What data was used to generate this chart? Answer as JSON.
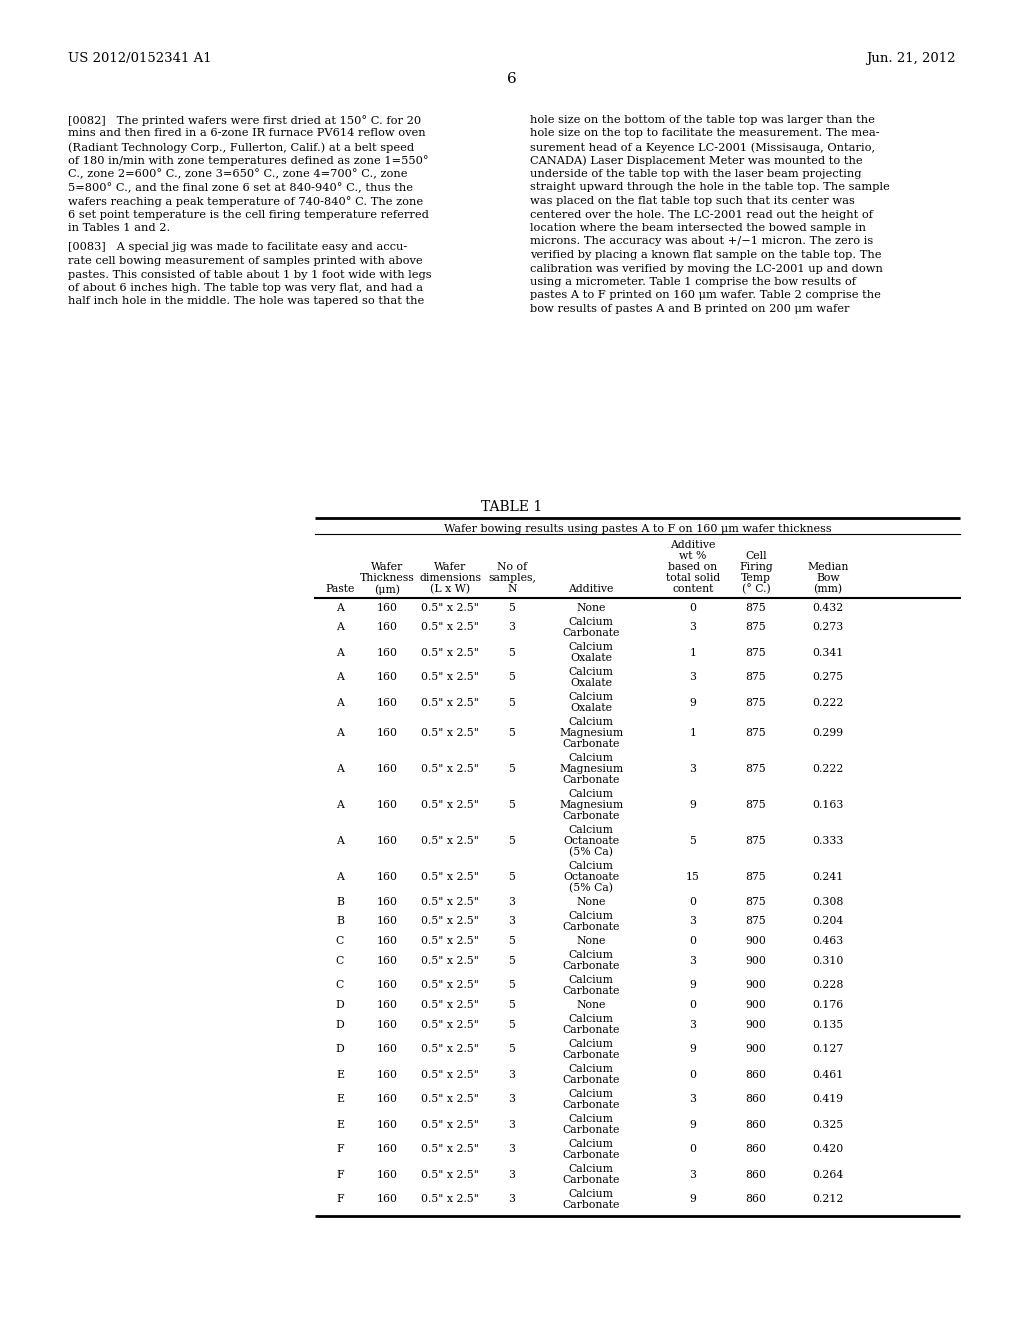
{
  "header_left": "US 2012/0152341 A1",
  "header_right": "Jun. 21, 2012",
  "page_number": "6",
  "para_0082_left": "[0082]   The printed wafers were first dried at 150° C. for 20\nmins and then fired in a 6-zone IR furnace PV614 reflow oven\n(Radiant Technology Corp., Fullerton, Calif.) at a belt speed\nof 180 in/min with zone temperatures defined as zone 1=550°\nC., zone 2=600° C., zone 3=650° C., zone 4=700° C., zone\n5=800° C., and the final zone 6 set at 840-940° C., thus the\nwafers reaching a peak temperature of 740-840° C. The zone\n6 set point temperature is the cell firing temperature referred\nin Tables 1 and 2.",
  "para_0083_left": "[0083]   A special jig was made to facilitate easy and accu-\nrate cell bowing measurement of samples printed with above\npastes. This consisted of table about 1 by 1 foot wide with legs\nof about 6 inches high. The table top was very flat, and had a\nhalf inch hole in the middle. The hole was tapered so that the",
  "para_right": "hole size on the bottom of the table top was larger than the\nhole size on the top to facilitate the measurement. The mea-\nsurement head of a Keyence LC-2001 (Missisauga, Ontario,\nCANADA) Laser Displacement Meter was mounted to the\nunderside of the table top with the laser beam projecting\nstraight upward through the hole in the table top. The sample\nwas placed on the flat table top such that its center was\ncentered over the hole. The LC-2001 read out the height of\nlocation where the beam intersected the bowed sample in\nmicrons. The accuracy was about +/−1 micron. The zero is\nverified by placing a known flat sample on the table top. The\ncalibration was verified by moving the LC-2001 up and down\nusing a micrometer. Table 1 comprise the bow results of\npastes A to F printed on 160 μm wafer. Table 2 comprise the\nbow results of pastes A and B printed on 200 μm wafer",
  "table_title": "TABLE 1",
  "table_subtitle": "Wafer bowing results using pastes A to F on 160 μm wafer thickness",
  "col_headers_line1": [
    "",
    "",
    "",
    "",
    "",
    "Additive",
    "",
    ""
  ],
  "col_headers_line2": [
    "",
    "",
    "",
    "",
    "",
    "wt %",
    "Cell",
    ""
  ],
  "col_headers_line3": [
    "",
    "Wafer",
    "Wafer",
    "No of",
    "",
    "based on",
    "Firing",
    "Median"
  ],
  "col_headers_line4": [
    "",
    "Thickness",
    "dimensions",
    "samples,",
    "",
    "total solid",
    "Temp",
    "Bow"
  ],
  "col_headers_line5": [
    "Paste",
    "(μm)",
    "(L x W)",
    "N",
    "Additive",
    "content",
    "(° C.)",
    "(mm)"
  ],
  "rows": [
    [
      "A",
      "160",
      "0.5\" x 2.5\"",
      "5",
      "None",
      "0",
      "875",
      "0.432"
    ],
    [
      "A",
      "160",
      "0.5\" x 2.5\"",
      "3",
      "Calcium\nCarbonate",
      "3",
      "875",
      "0.273"
    ],
    [
      "A",
      "160",
      "0.5\" x 2.5\"",
      "5",
      "Calcium\nOxalate",
      "1",
      "875",
      "0.341"
    ],
    [
      "A",
      "160",
      "0.5\" x 2.5\"",
      "5",
      "Calcium\nOxalate",
      "3",
      "875",
      "0.275"
    ],
    [
      "A",
      "160",
      "0.5\" x 2.5\"",
      "5",
      "Calcium\nOxalate",
      "9",
      "875",
      "0.222"
    ],
    [
      "A",
      "160",
      "0.5\" x 2.5\"",
      "5",
      "Calcium\nMagnesium\nCarbonate",
      "1",
      "875",
      "0.299"
    ],
    [
      "A",
      "160",
      "0.5\" x 2.5\"",
      "5",
      "Calcium\nMagnesium\nCarbonate",
      "3",
      "875",
      "0.222"
    ],
    [
      "A",
      "160",
      "0.5\" x 2.5\"",
      "5",
      "Calcium\nMagnesium\nCarbonate",
      "9",
      "875",
      "0.163"
    ],
    [
      "A",
      "160",
      "0.5\" x 2.5\"",
      "5",
      "Calcium\nOctanoate\n(5% Ca)",
      "5",
      "875",
      "0.333"
    ],
    [
      "A",
      "160",
      "0.5\" x 2.5\"",
      "5",
      "Calcium\nOctanoate\n(5% Ca)",
      "15",
      "875",
      "0.241"
    ],
    [
      "B",
      "160",
      "0.5\" x 2.5\"",
      "3",
      "None",
      "0",
      "875",
      "0.308"
    ],
    [
      "B",
      "160",
      "0.5\" x 2.5\"",
      "3",
      "Calcium\nCarbonate",
      "3",
      "875",
      "0.204"
    ],
    [
      "C",
      "160",
      "0.5\" x 2.5\"",
      "5",
      "None",
      "0",
      "900",
      "0.463"
    ],
    [
      "C",
      "160",
      "0.5\" x 2.5\"",
      "5",
      "Calcium\nCarbonate",
      "3",
      "900",
      "0.310"
    ],
    [
      "C",
      "160",
      "0.5\" x 2.5\"",
      "5",
      "Calcium\nCarbonate",
      "9",
      "900",
      "0.228"
    ],
    [
      "D",
      "160",
      "0.5\" x 2.5\"",
      "5",
      "None",
      "0",
      "900",
      "0.176"
    ],
    [
      "D",
      "160",
      "0.5\" x 2.5\"",
      "5",
      "Calcium\nCarbonate",
      "3",
      "900",
      "0.135"
    ],
    [
      "D",
      "160",
      "0.5\" x 2.5\"",
      "5",
      "Calcium\nCarbonate",
      "9",
      "900",
      "0.127"
    ],
    [
      "E",
      "160",
      "0.5\" x 2.5\"",
      "3",
      "Calcium\nCarbonate",
      "0",
      "860",
      "0.461"
    ],
    [
      "E",
      "160",
      "0.5\" x 2.5\"",
      "3",
      "Calcium\nCarbonate",
      "3",
      "860",
      "0.419"
    ],
    [
      "E",
      "160",
      "0.5\" x 2.5\"",
      "3",
      "Calcium\nCarbonate",
      "9",
      "860",
      "0.325"
    ],
    [
      "F",
      "160",
      "0.5\" x 2.5\"",
      "3",
      "Calcium\nCarbonate",
      "0",
      "860",
      "0.420"
    ],
    [
      "F",
      "160",
      "0.5\" x 2.5\"",
      "3",
      "Calcium\nCarbonate",
      "3",
      "860",
      "0.264"
    ],
    [
      "F",
      "160",
      "0.5\" x 2.5\"",
      "3",
      "Calcium\nCarbonate",
      "9",
      "860",
      "0.212"
    ]
  ],
  "bg_color": "#ffffff",
  "text_color": "#000000"
}
